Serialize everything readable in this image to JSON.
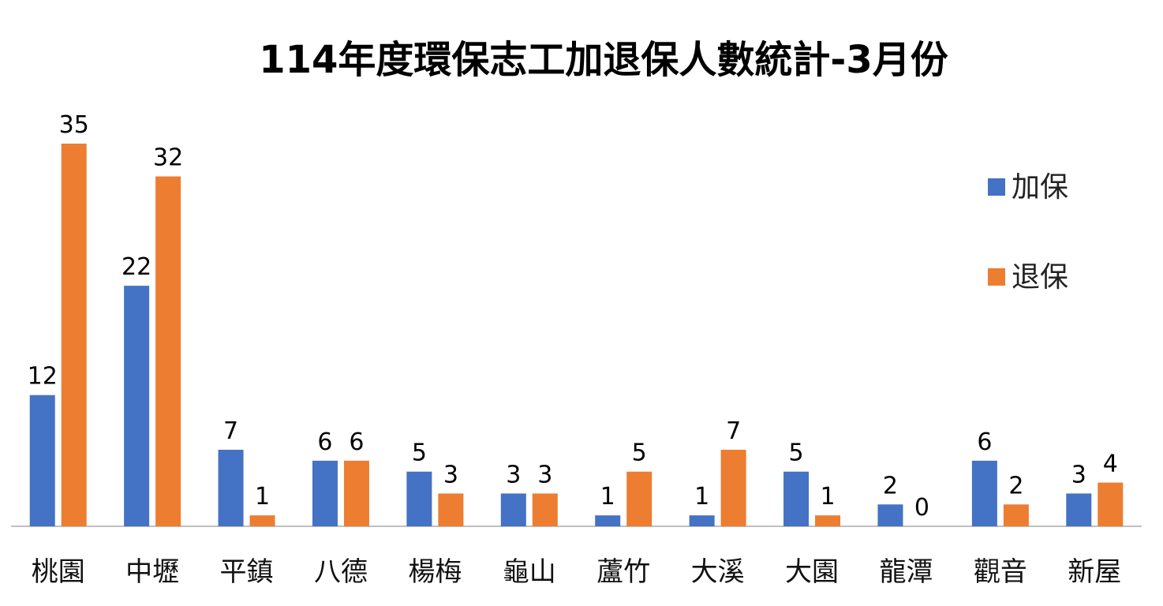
{
  "chart_data": {
    "type": "bar",
    "title": "114年度環保志工加退保人數統計-3月份",
    "categories": [
      "桃園",
      "中壢",
      "平鎮",
      "八德",
      "楊梅",
      "龜山",
      "蘆竹",
      "大溪",
      "大園",
      "龍潭",
      "觀音",
      "新屋"
    ],
    "series": [
      {
        "name": "加保",
        "color": "#4472C4",
        "values": [
          12,
          22,
          7,
          6,
          5,
          3,
          1,
          1,
          5,
          2,
          6,
          3
        ]
      },
      {
        "name": "退保",
        "color": "#ED7D31",
        "values": [
          35,
          32,
          1,
          6,
          3,
          3,
          5,
          7,
          1,
          0,
          2,
          4
        ]
      }
    ],
    "ylim": [
      0,
      35
    ],
    "grid": false,
    "legend_position": "right",
    "data_labels": true
  }
}
